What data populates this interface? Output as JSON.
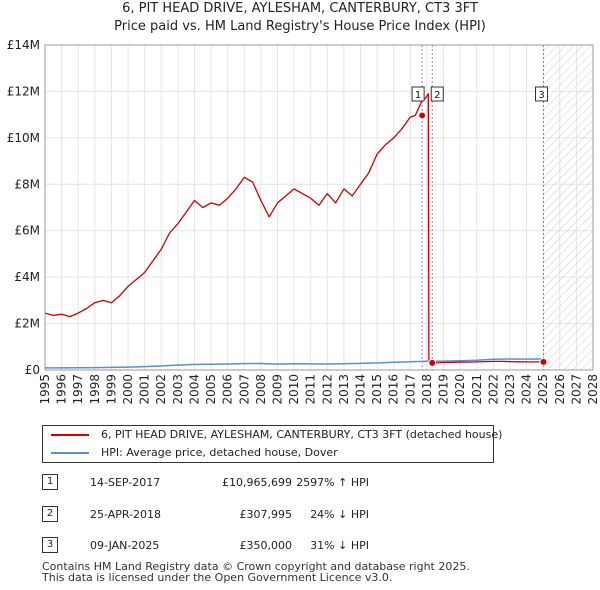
{
  "chart_data": {
    "type": "line",
    "title": "6, PIT HEAD DRIVE, AYLESHAM, CANTERBURY, CT3 3FT",
    "subtitle": "Price paid vs. HM Land Registry's House Price Index (HPI)",
    "xlim": [
      1995,
      2028
    ],
    "ylim": [
      0,
      14000000
    ],
    "x_ticks": [
      "1995",
      "1996",
      "1997",
      "1998",
      "1999",
      "2000",
      "2001",
      "2002",
      "2003",
      "2004",
      "2005",
      "2006",
      "2007",
      "2008",
      "2009",
      "2010",
      "2011",
      "2012",
      "2013",
      "2014",
      "2015",
      "2016",
      "2017",
      "2018",
      "2019",
      "2020",
      "2021",
      "2022",
      "2023",
      "2024",
      "2025",
      "2026",
      "2027",
      "2028"
    ],
    "y_ticks": [
      {
        "value": 0,
        "label": "£0"
      },
      {
        "value": 2000000,
        "label": "£2M"
      },
      {
        "value": 4000000,
        "label": "£4M"
      },
      {
        "value": 6000000,
        "label": "£6M"
      },
      {
        "value": 8000000,
        "label": "£8M"
      },
      {
        "value": 10000000,
        "label": "£10M"
      },
      {
        "value": 12000000,
        "label": "£12M"
      },
      {
        "value": 14000000,
        "label": "£14M"
      }
    ],
    "projection_start": 2025.0,
    "series": [
      {
        "name": "6, PIT HEAD DRIVE, AYLESHAM, CANTERBURY, CT3 3FT (detached house)",
        "color": "#cc0000",
        "x": [
          1995.0,
          1995.5,
          1996.0,
          1996.5,
          1997.0,
          1997.5,
          1998.0,
          1998.5,
          1999.0,
          1999.5,
          2000.0,
          2000.5,
          2001.0,
          2001.5,
          2002.0,
          2002.5,
          2003.0,
          2003.5,
          2004.0,
          2004.5,
          2005.0,
          2005.5,
          2006.0,
          2006.5,
          2007.0,
          2007.5,
          2008.0,
          2008.5,
          2009.0,
          2009.5,
          2010.0,
          2010.5,
          2011.0,
          2011.5,
          2012.0,
          2012.5,
          2013.0,
          2013.5,
          2014.0,
          2014.5,
          2015.0,
          2015.5,
          2016.0,
          2016.5,
          2017.0,
          2017.3,
          2017.7,
          2017.9,
          2018.08,
          2018.1,
          2018.12,
          2018.3,
          2018.5,
          2018.8,
          2019.0,
          2019.5,
          2020.0,
          2020.5,
          2021.0,
          2021.5,
          2022.0,
          2022.5,
          2023.0,
          2023.5,
          2024.0,
          2024.5,
          2025.02
        ],
        "y": [
          2450000,
          2350000,
          2400000,
          2300000,
          2450000,
          2650000,
          2900000,
          3000000,
          2900000,
          3200000,
          3600000,
          3900000,
          4200000,
          4700000,
          5200000,
          5900000,
          6300000,
          6800000,
          7300000,
          7000000,
          7200000,
          7100000,
          7400000,
          7800000,
          8300000,
          8100000,
          7300000,
          6600000,
          7200000,
          7500000,
          7800000,
          7600000,
          7400000,
          7100000,
          7600000,
          7200000,
          7800000,
          7500000,
          8000000,
          8500000,
          9300000,
          9700000,
          10000000,
          10400000,
          10900000,
          10965699,
          11600000,
          11700000,
          11900000,
          6000000,
          307995,
          300000,
          310000,
          320000,
          330000,
          330000,
          340000,
          340000,
          350000,
          360000,
          370000,
          370000,
          360000,
          355000,
          350000,
          350000,
          350000
        ]
      },
      {
        "name": "HPI: Average price, detached house, Dover",
        "color": "#5b8ed6",
        "x": [
          1995,
          1996,
          1997,
          1998,
          1999,
          2000,
          2001,
          2002,
          2003,
          2004,
          2005,
          2006,
          2007,
          2008,
          2009,
          2010,
          2011,
          2012,
          2013,
          2014,
          2015,
          2016,
          2017,
          2018,
          2019,
          2020,
          2021,
          2022,
          2023,
          2024,
          2025
        ],
        "y": [
          90000,
          92000,
          96000,
          102000,
          110000,
          125000,
          145000,
          175000,
          210000,
          240000,
          250000,
          260000,
          275000,
          280000,
          255000,
          265000,
          262000,
          260000,
          268000,
          285000,
          305000,
          330000,
          355000,
          375000,
          385000,
          395000,
          420000,
          460000,
          475000,
          470000,
          480000
        ]
      }
    ],
    "sales": [
      {
        "id": "1",
        "x": 2017.71,
        "y": 10965699
      },
      {
        "id": "2",
        "x": 2018.32,
        "y": 307995
      },
      {
        "id": "3",
        "x": 2025.02,
        "y": 350000
      }
    ]
  },
  "legend": {
    "property_label": "6, PIT HEAD DRIVE, AYLESHAM, CANTERBURY, CT3 3FT (detached house)",
    "hpi_label": "HPI: Average price, detached house, Dover"
  },
  "transactions": [
    {
      "num": "1",
      "date": "14-SEP-2017",
      "price": "£10,965,699",
      "hpi": "2597% ↑ HPI"
    },
    {
      "num": "2",
      "date": "25-APR-2018",
      "price": "£307,995",
      "hpi": "24% ↓ HPI"
    },
    {
      "num": "3",
      "date": "09-JAN-2025",
      "price": "£350,000",
      "hpi": "31% ↓ HPI"
    }
  ],
  "footer": {
    "line1": "Contains HM Land Registry data © Crown copyright and database right 2025.",
    "line2": "This data is licensed under the Open Government Licence v3.0."
  },
  "colors": {
    "property": "#cc0000",
    "hpi": "#5b8ed6",
    "vline": "#6666dd"
  }
}
